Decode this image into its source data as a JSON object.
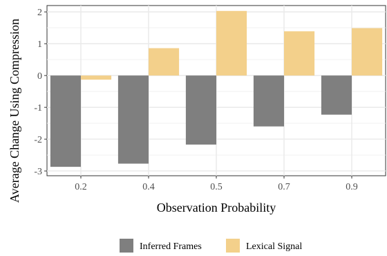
{
  "chart_data": {
    "type": "bar",
    "xlabel": "Observation Probability",
    "ylabel": "Average Change Using Compression",
    "categories": [
      "0.2",
      "0.4",
      "0.5",
      "0.7",
      "0.9"
    ],
    "series": [
      {
        "name": "Inferred Frames",
        "color": "#7f7f7f",
        "values": [
          -2.87,
          -2.77,
          -2.17,
          -1.6,
          -1.23
        ]
      },
      {
        "name": "Lexical Signal",
        "color": "#f3d08b",
        "values": [
          -0.13,
          0.86,
          2.03,
          1.39,
          1.49
        ]
      }
    ],
    "ylim": [
      -3.15,
      2.2
    ],
    "yticks": [
      -3,
      -2,
      -1,
      0,
      1,
      2
    ],
    "ytick_labels": [
      "-3",
      "-2",
      "-1",
      "0",
      "1",
      "2"
    ],
    "grid": true,
    "legend_position": "bottom"
  }
}
